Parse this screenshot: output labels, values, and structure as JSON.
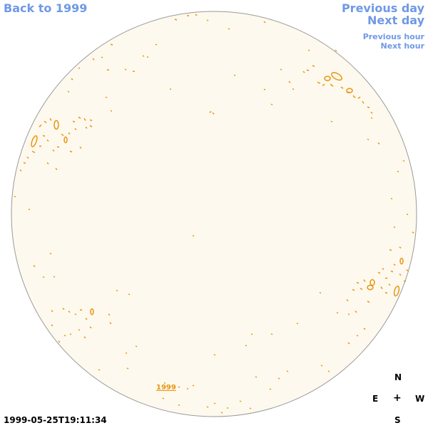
{
  "nav": {
    "back_label": "Back to 1999",
    "previous_day_label": "Previous day",
    "next_day_label": "Next day",
    "previous_hour_label": "Previous hour",
    "next_hour_label": "Next hour"
  },
  "map": {
    "year_label": "1999",
    "timestamp": "1999-05-25T19:11:34"
  },
  "compass": {
    "north": "N",
    "east": "E",
    "center": "+",
    "west": "W",
    "south": "S"
  },
  "colors": {
    "link": "#6f99e6",
    "disk_fill": "#fef9ee",
    "contour": "#e8960f",
    "disk_stroke": "#9a9a9a"
  }
}
